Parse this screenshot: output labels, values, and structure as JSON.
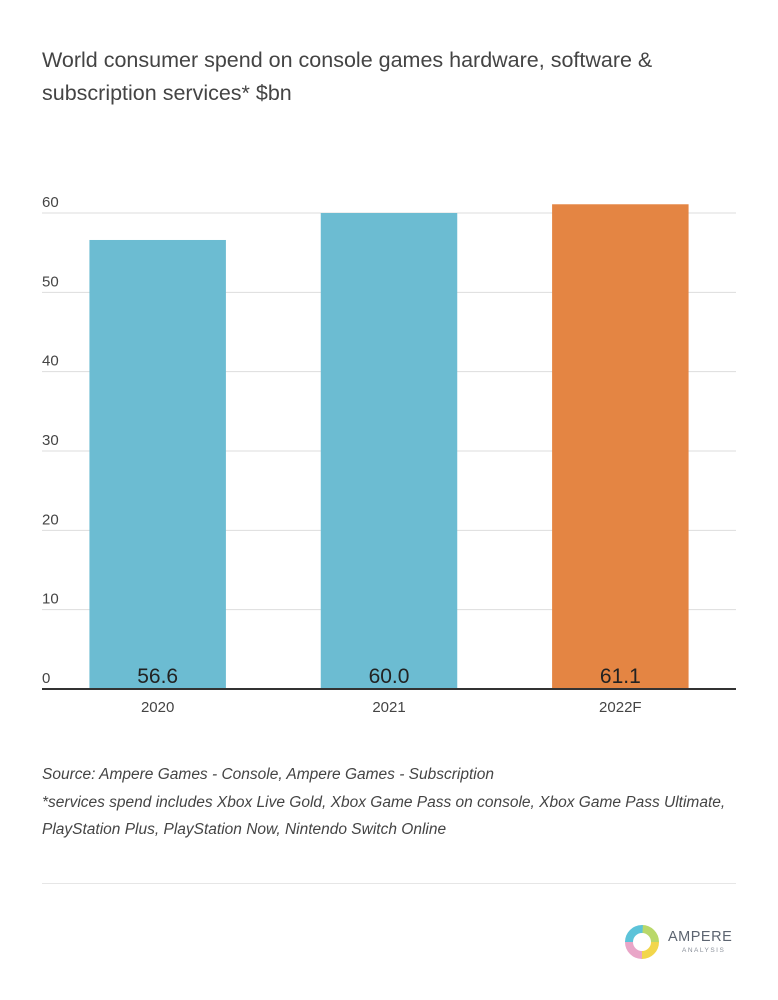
{
  "chart_data": {
    "type": "bar",
    "title": "World consumer spend on console games hardware, software & subscription services* $bn",
    "categories": [
      "2020",
      "2021",
      "2022F"
    ],
    "values": [
      56.6,
      60.0,
      61.1
    ],
    "value_labels": [
      "56.6",
      "60.0",
      "61.1"
    ],
    "bar_colors": [
      "#6cbcd2",
      "#6cbcd2",
      "#e48543"
    ],
    "ylim": [
      0,
      60
    ],
    "yticks": [
      0,
      10,
      20,
      30,
      40,
      50,
      60
    ],
    "xlabel": "",
    "ylabel": "",
    "grid": true,
    "legend": "none"
  },
  "source": {
    "line1": "Source: Ampere Games - Console, Ampere Games - Subscription",
    "line2": "*services spend includes Xbox Live Gold, Xbox Game Pass on console, Xbox Game Pass Ultimate, PlayStation Plus, PlayStation Now, Nintendo Switch Online"
  },
  "logo": {
    "name": "AMPERE",
    "subtitle": "ANALYSIS",
    "icon": "ampere-ring-logo-icon"
  },
  "colors": {
    "bar_actual": "#6cbcd2",
    "bar_forecast": "#e48543",
    "grid": "#dddddd",
    "axis": "#333333",
    "text": "#444444"
  }
}
